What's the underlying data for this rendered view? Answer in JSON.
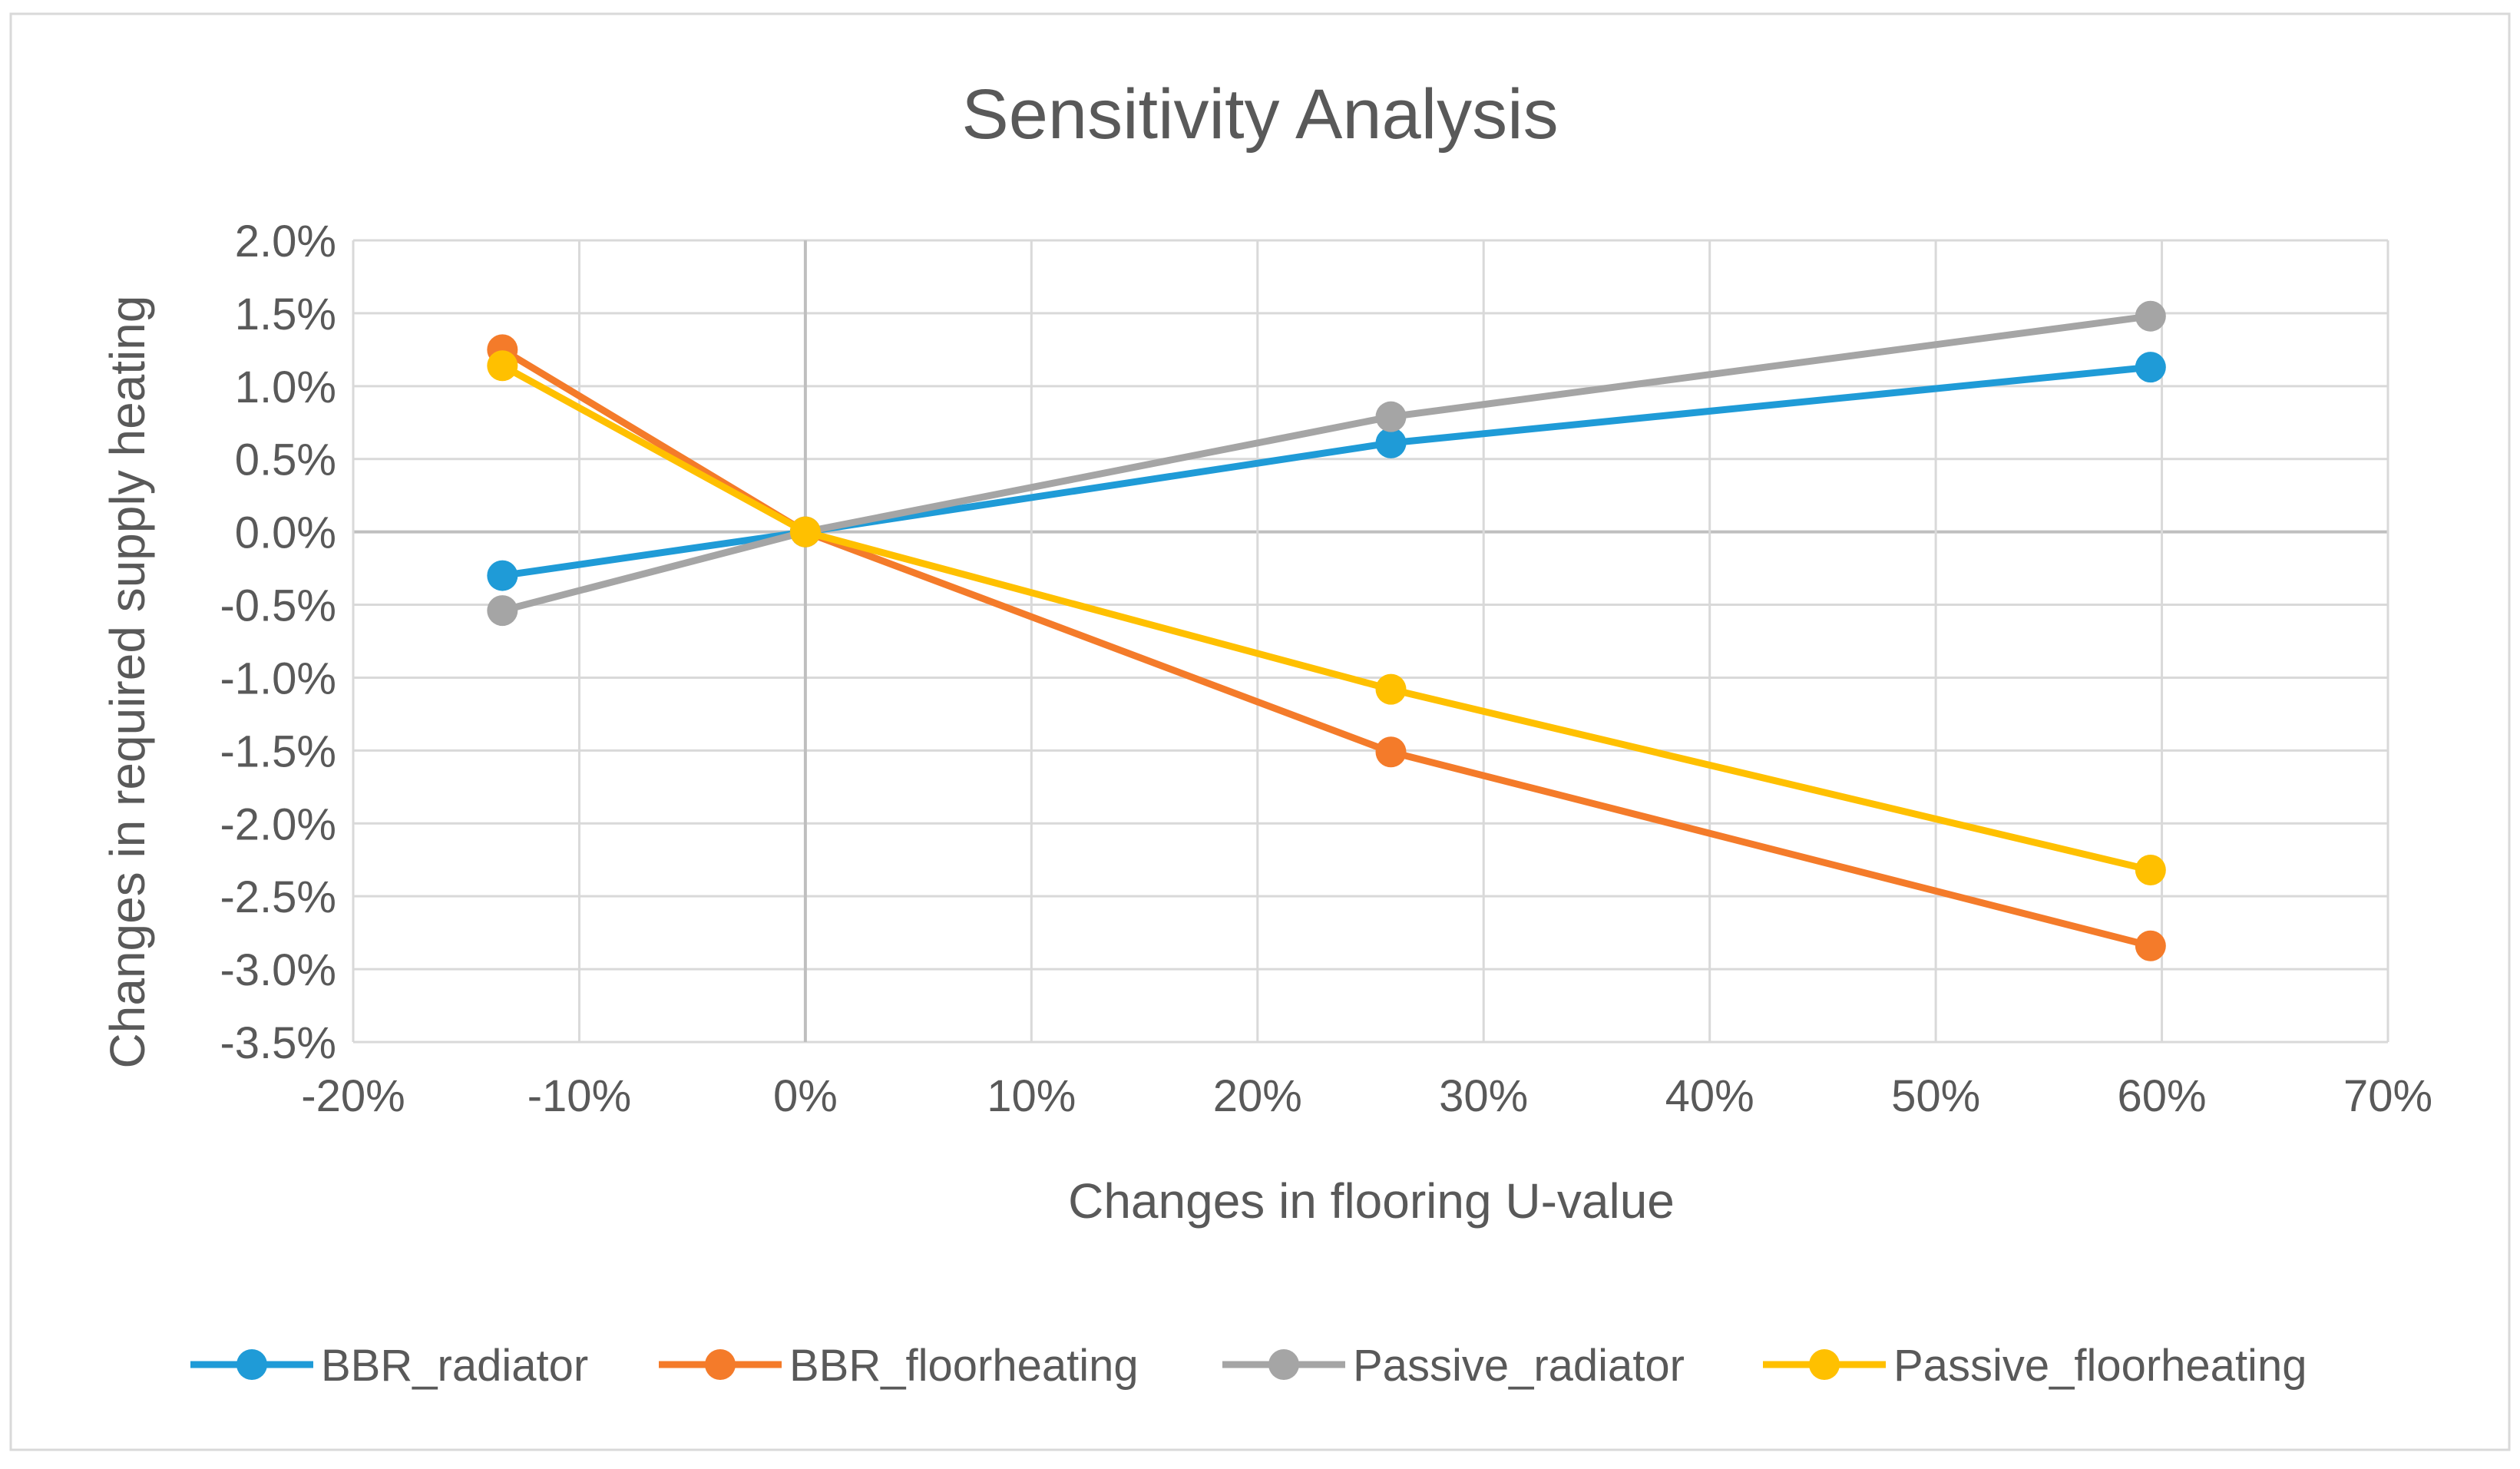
{
  "chart_data": {
    "type": "line",
    "title": "Sensitivity Analysis",
    "xlabel": "Changes in flooring U-value",
    "ylabel": "Changes in required supply heating",
    "xlim": [
      -20,
      70
    ],
    "ylim": [
      -3.5,
      2.0
    ],
    "x_ticks": [
      -20,
      -10,
      0,
      10,
      20,
      30,
      40,
      50,
      60,
      70
    ],
    "y_ticks": [
      2.0,
      1.5,
      1.0,
      0.5,
      0.0,
      -0.5,
      -1.0,
      -1.5,
      -2.0,
      -2.5,
      -3.0,
      -3.5
    ],
    "x_tick_labels": [
      "-20%",
      "-10%",
      "0%",
      "10%",
      "20%",
      "30%",
      "40%",
      "50%",
      "60%",
      "70%"
    ],
    "y_tick_labels": [
      "2.0%",
      "1.5%",
      "1.0%",
      "0.5%",
      "0.0%",
      "-0.5%",
      "-1.0%",
      "-1.5%",
      "-2.0%",
      "-2.5%",
      "-3.0%",
      "-3.5%"
    ],
    "grid": true,
    "legend_position": "bottom",
    "series": [
      {
        "name": "BBR_radiator",
        "color": "#1f9bd7",
        "points": [
          {
            "x": -13.4,
            "y": -0.3
          },
          {
            "x": 0,
            "y": 0.0
          },
          {
            "x": 25.9,
            "y": 0.61
          },
          {
            "x": 59.5,
            "y": 1.13
          }
        ]
      },
      {
        "name": "BBR_floorheating",
        "color": "#f47b2a",
        "points": [
          {
            "x": -13.4,
            "y": 1.25
          },
          {
            "x": 0,
            "y": 0.0
          },
          {
            "x": 25.9,
            "y": -1.51
          },
          {
            "x": 59.5,
            "y": -2.84
          }
        ]
      },
      {
        "name": "Passive_radiator",
        "color": "#a5a5a5",
        "points": [
          {
            "x": -13.4,
            "y": -0.54
          },
          {
            "x": 0,
            "y": 0.0
          },
          {
            "x": 25.9,
            "y": 0.79
          },
          {
            "x": 59.5,
            "y": 1.48
          }
        ]
      },
      {
        "name": "Passive_floorheating",
        "color": "#ffc000",
        "points": [
          {
            "x": -13.4,
            "y": 1.14
          },
          {
            "x": 0,
            "y": 0.0
          },
          {
            "x": 25.9,
            "y": -1.08
          },
          {
            "x": 59.5,
            "y": -2.32
          }
        ]
      }
    ]
  }
}
